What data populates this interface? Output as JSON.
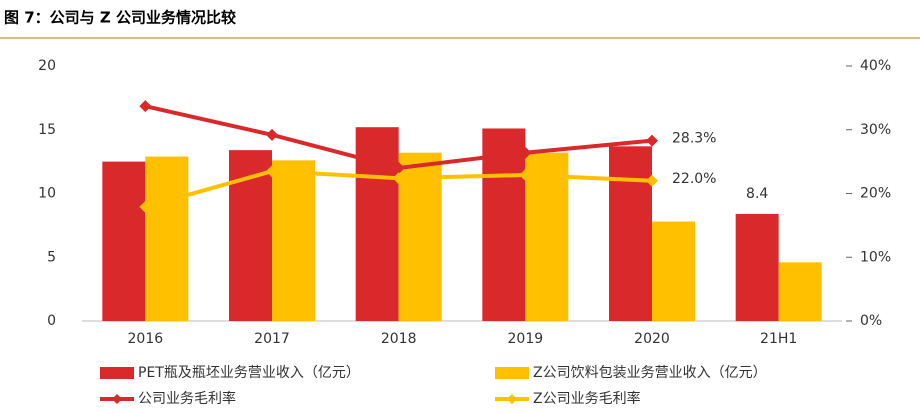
{
  "chart_data": {
    "type": "bar_line",
    "title": "图 7：公司与 Z 公司业务情况比较",
    "categories": [
      "2016",
      "2017",
      "2018",
      "2019",
      "2020",
      "21H1"
    ],
    "series": [
      {
        "name": "PET瓶及瓶坯业务营业收入（亿元）",
        "kind": "bar",
        "color": "#d9292b",
        "values": [
          12.5,
          13.4,
          15.2,
          15.1,
          13.7,
          8.4
        ],
        "value_labels": [
          null,
          null,
          null,
          null,
          null,
          "8.4"
        ]
      },
      {
        "name": "Z公司饮料包装业务营业收入（亿元）",
        "kind": "bar",
        "color": "#ffc000",
        "values": [
          12.9,
          12.6,
          13.2,
          13.2,
          7.8,
          4.6
        ]
      },
      {
        "name": "公司业务毛利率",
        "kind": "line",
        "axis": "y2",
        "color": "#d9292b",
        "values": [
          33.7,
          29.2,
          24.0,
          26.4,
          28.3,
          null
        ],
        "value_labels": [
          null,
          null,
          null,
          null,
          "28.3%",
          null
        ]
      },
      {
        "name": "Z公司业务毛利率",
        "kind": "line",
        "axis": "y2",
        "color": "#ffc000",
        "values": [
          17.9,
          23.5,
          22.4,
          22.9,
          22.0,
          null
        ],
        "value_labels": [
          null,
          null,
          null,
          null,
          "22.0%",
          null
        ]
      }
    ],
    "ylim": [
      0,
      20
    ],
    "yticks": [
      0,
      5,
      10,
      15,
      20
    ],
    "y2lim": [
      0,
      40
    ],
    "y2ticks": [
      {
        "value": 0,
        "label": "0%"
      },
      {
        "value": 10,
        "label": "10%"
      },
      {
        "value": 20,
        "label": "20%"
      },
      {
        "value": 30,
        "label": "30%"
      },
      {
        "value": 40,
        "label": "40%"
      }
    ]
  }
}
